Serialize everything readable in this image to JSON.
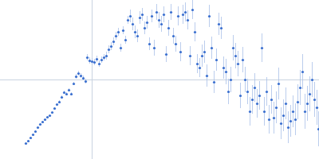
{
  "chart_data": {
    "type": "scatter",
    "color": "#3a6fcf",
    "marker": "circle",
    "xlim": [
      -115,
      285
    ],
    "ylim": [
      -100,
      100
    ],
    "xticks": [
      0
    ],
    "yticks": [
      0
    ],
    "grid": true,
    "tick_labels": false,
    "x": [
      -83,
      -80,
      -77,
      -74,
      -71,
      -68,
      -65,
      -62,
      -59,
      -56,
      -53,
      -50,
      -47,
      -44,
      -41,
      -38,
      -35,
      -32,
      -29,
      -26,
      -23,
      -20,
      -17,
      -14,
      -11,
      -8,
      -6,
      -3,
      0,
      3,
      6,
      9,
      12,
      15,
      18,
      21,
      24,
      27,
      30,
      33,
      36,
      39,
      42,
      45,
      48,
      51,
      54,
      57,
      60,
      63,
      66,
      69,
      72,
      75,
      78,
      81,
      84,
      87,
      90,
      93,
      96,
      99,
      102,
      105,
      108,
      111,
      114,
      117,
      120,
      123,
      126,
      129,
      132,
      135,
      138,
      141,
      144,
      147,
      150,
      153,
      156,
      159,
      162,
      165,
      168,
      171,
      174,
      177,
      180,
      183,
      186,
      189,
      192,
      195,
      198,
      201,
      204,
      207,
      210,
      213,
      216,
      219,
      222,
      225,
      228,
      231,
      234,
      237,
      240,
      243,
      246,
      249,
      252,
      255,
      258,
      261,
      264,
      267,
      270,
      273,
      276,
      279,
      282,
      284
    ],
    "values": [
      -80,
      -77,
      -73,
      -69,
      -65,
      -60,
      -56,
      -53,
      -50,
      -47,
      -45,
      -41,
      -36,
      -31,
      -28,
      -22,
      -16,
      -18,
      -13,
      -18,
      -5,
      4,
      8,
      5,
      2,
      -2,
      28,
      24,
      23,
      22,
      26,
      20,
      25,
      28,
      30,
      38,
      42,
      48,
      55,
      60,
      40,
      62,
      50,
      75,
      80,
      70,
      60,
      55,
      78,
      82,
      65,
      72,
      45,
      80,
      40,
      85,
      75,
      70,
      82,
      32,
      65,
      85,
      55,
      45,
      80,
      35,
      82,
      85,
      75,
      30,
      88,
      60,
      20,
      15,
      30,
      35,
      5,
      80,
      40,
      -3,
      25,
      70,
      65,
      15,
      10,
      -15,
      0,
      40,
      30,
      20,
      -20,
      25,
      0,
      -15,
      -40,
      -25,
      -10,
      -30,
      -20,
      40,
      -40,
      -15,
      -50,
      -25,
      -48,
      -35,
      -5,
      -55,
      -45,
      -30,
      -60,
      -52,
      -40,
      -50,
      -28,
      -10,
      10,
      -40,
      -30,
      -18,
      0,
      -25,
      -35,
      -62
    ],
    "errors": [
      1,
      1,
      1,
      1,
      1,
      1,
      1,
      1,
      1,
      1,
      1,
      1,
      1,
      1,
      2,
      2,
      2,
      2,
      2,
      2,
      2,
      3,
      3,
      3,
      3,
      3,
      4,
      4,
      4,
      4,
      4,
      4,
      4,
      4,
      5,
      5,
      5,
      5,
      5,
      5,
      5,
      5,
      5,
      5,
      8,
      8,
      8,
      8,
      8,
      8,
      8,
      8,
      8,
      8,
      10,
      10,
      10,
      10,
      10,
      10,
      10,
      10,
      10,
      10,
      12,
      12,
      12,
      12,
      12,
      12,
      12,
      12,
      12,
      12,
      14,
      14,
      14,
      14,
      14,
      14,
      14,
      14,
      14,
      14,
      16,
      16,
      16,
      16,
      16,
      16,
      16,
      16,
      16,
      16,
      18,
      18,
      18,
      18,
      18,
      18,
      18,
      18,
      18,
      18,
      20,
      20,
      20,
      20,
      20,
      20,
      20,
      20,
      20,
      20,
      22,
      22,
      22,
      22,
      22,
      22,
      22,
      22,
      22,
      22
    ]
  }
}
